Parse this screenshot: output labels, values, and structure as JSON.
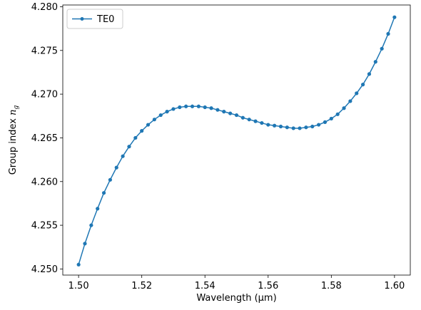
{
  "chart_data": {
    "type": "line",
    "xlabel": "Wavelength (μm)",
    "ylabel_main": "Group index ",
    "ylabel_sym": "n",
    "ylabel_sub": "g",
    "xlim": [
      1.495,
      1.605
    ],
    "ylim": [
      4.2493,
      4.2802
    ],
    "xticks": [
      1.5,
      1.52,
      1.54,
      1.56,
      1.58,
      1.6
    ],
    "xtick_labels": [
      "1.50",
      "1.52",
      "1.54",
      "1.56",
      "1.58",
      "1.60"
    ],
    "yticks": [
      4.25,
      4.255,
      4.26,
      4.265,
      4.27,
      4.275,
      4.28
    ],
    "ytick_labels": [
      "4.250",
      "4.255",
      "4.260",
      "4.265",
      "4.270",
      "4.275",
      "4.280"
    ],
    "grid": false,
    "legend_position": "top-left",
    "series": [
      {
        "name": "TE0",
        "color": "#1f77b4",
        "marker": "circle",
        "x": [
          1.5,
          1.502,
          1.504,
          1.506,
          1.508,
          1.51,
          1.512,
          1.514,
          1.516,
          1.518,
          1.52,
          1.522,
          1.524,
          1.526,
          1.528,
          1.53,
          1.532,
          1.534,
          1.536,
          1.538,
          1.54,
          1.542,
          1.544,
          1.546,
          1.548,
          1.55,
          1.552,
          1.554,
          1.556,
          1.558,
          1.56,
          1.562,
          1.564,
          1.566,
          1.568,
          1.57,
          1.572,
          1.574,
          1.576,
          1.578,
          1.58,
          1.582,
          1.584,
          1.586,
          1.588,
          1.59,
          1.592,
          1.594,
          1.596,
          1.598,
          1.6
        ],
        "y": [
          4.2505,
          4.2529,
          4.255,
          4.2569,
          4.2587,
          4.2602,
          4.2616,
          4.2629,
          4.264,
          4.265,
          4.2658,
          4.2665,
          4.2671,
          4.2676,
          4.268,
          4.2683,
          4.2685,
          4.2686,
          4.2686,
          4.2686,
          4.2685,
          4.2684,
          4.2682,
          4.268,
          4.2678,
          4.2676,
          4.2673,
          4.2671,
          4.2669,
          4.2667,
          4.2665,
          4.2664,
          4.2663,
          4.2662,
          4.2661,
          4.2661,
          4.2662,
          4.2663,
          4.2665,
          4.2668,
          4.2672,
          4.2677,
          4.2684,
          4.2692,
          4.2701,
          4.2711,
          4.2723,
          4.2737,
          4.2752,
          4.2769,
          4.2788
        ]
      }
    ]
  }
}
